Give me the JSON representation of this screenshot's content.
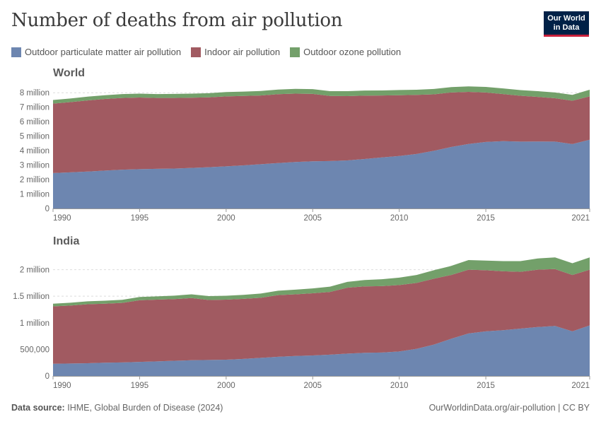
{
  "title": "Number of deaths from air pollution",
  "logo": {
    "line1": "Our World",
    "line2": "in Data"
  },
  "colors": {
    "outdoor_pm": "#6d86b0",
    "indoor": "#a15a61",
    "ozone": "#73a06a"
  },
  "legend": [
    {
      "label": "Outdoor particulate matter air pollution",
      "color": "#6d86b0"
    },
    {
      "label": "Indoor air pollution",
      "color": "#a15a61"
    },
    {
      "label": "Outdoor ozone pollution",
      "color": "#73a06a"
    }
  ],
  "footer": {
    "source_label": "Data source:",
    "source_text": "IHME, Global Burden of Disease (2024)",
    "credit": "OurWorldinData.org/air-pollution | CC BY"
  },
  "chart_data": [
    {
      "type": "area",
      "stacked": true,
      "title": "World",
      "x": [
        1990,
        1991,
        1992,
        1993,
        1994,
        1995,
        1996,
        1997,
        1998,
        1999,
        2000,
        2001,
        2002,
        2003,
        2004,
        2005,
        2006,
        2007,
        2008,
        2009,
        2010,
        2011,
        2012,
        2013,
        2014,
        2015,
        2016,
        2017,
        2018,
        2019,
        2020,
        2021
      ],
      "ylim": [
        0,
        8500000
      ],
      "yticks": [
        0,
        1000000,
        2000000,
        3000000,
        4000000,
        5000000,
        6000000,
        7000000,
        8000000
      ],
      "ytick_labels": [
        "0",
        "1 million",
        "2 million",
        "3 million",
        "4 million",
        "5 million",
        "6 million",
        "7 million",
        "8 million"
      ],
      "xticks": [
        1990,
        1995,
        2000,
        2005,
        2010,
        2015,
        2021
      ],
      "series": [
        {
          "name": "Outdoor particulate matter air pollution",
          "values": [
            2450000,
            2500000,
            2550000,
            2620000,
            2680000,
            2720000,
            2740000,
            2760000,
            2800000,
            2850000,
            2910000,
            2980000,
            3060000,
            3140000,
            3210000,
            3260000,
            3280000,
            3320000,
            3420000,
            3530000,
            3630000,
            3770000,
            3990000,
            4250000,
            4460000,
            4600000,
            4650000,
            4620000,
            4630000,
            4620000,
            4450000,
            4750000
          ]
        },
        {
          "name": "Indoor air pollution",
          "values": [
            4800000,
            4850000,
            4920000,
            4950000,
            4960000,
            4950000,
            4900000,
            4880000,
            4860000,
            4830000,
            4840000,
            4800000,
            4750000,
            4760000,
            4730000,
            4660000,
            4500000,
            4450000,
            4380000,
            4280000,
            4200000,
            4080000,
            3900000,
            3770000,
            3600000,
            3420000,
            3260000,
            3170000,
            3080000,
            3000000,
            3000000,
            3000000
          ]
        },
        {
          "name": "Outdoor ozone pollution",
          "values": [
            250000,
            250000,
            260000,
            260000,
            270000,
            270000,
            270000,
            280000,
            280000,
            290000,
            300000,
            300000,
            310000,
            320000,
            330000,
            330000,
            330000,
            340000,
            350000,
            350000,
            360000,
            360000,
            370000,
            370000,
            380000,
            380000,
            390000,
            390000,
            400000,
            400000,
            400000,
            460000
          ]
        }
      ]
    },
    {
      "type": "area",
      "stacked": true,
      "title": "India",
      "x": [
        1990,
        1991,
        1992,
        1993,
        1994,
        1995,
        1996,
        1997,
        1998,
        1999,
        2000,
        2001,
        2002,
        2003,
        2004,
        2005,
        2006,
        2007,
        2008,
        2009,
        2010,
        2011,
        2012,
        2013,
        2014,
        2015,
        2016,
        2017,
        2018,
        2019,
        2020,
        2021
      ],
      "ylim": [
        0,
        2300000
      ],
      "yticks": [
        0,
        500000,
        1000000,
        1500000,
        2000000
      ],
      "ytick_labels": [
        "0",
        "500,000",
        "1 million",
        "1.5 million",
        "2 million"
      ],
      "xticks": [
        1990,
        1995,
        2000,
        2005,
        2010,
        2015,
        2021
      ],
      "series": [
        {
          "name": "Outdoor particulate matter air pollution",
          "values": [
            230000,
            235000,
            240000,
            250000,
            255000,
            265000,
            275000,
            285000,
            295000,
            300000,
            305000,
            320000,
            340000,
            360000,
            375000,
            385000,
            400000,
            420000,
            435000,
            440000,
            460000,
            510000,
            590000,
            700000,
            800000,
            840000,
            860000,
            890000,
            920000,
            940000,
            840000,
            950000
          ]
        },
        {
          "name": "Indoor air pollution",
          "values": [
            1080000,
            1090000,
            1110000,
            1110000,
            1120000,
            1160000,
            1160000,
            1160000,
            1170000,
            1130000,
            1130000,
            1130000,
            1130000,
            1160000,
            1160000,
            1170000,
            1180000,
            1240000,
            1250000,
            1250000,
            1250000,
            1240000,
            1240000,
            1200000,
            1200000,
            1150000,
            1110000,
            1070000,
            1080000,
            1070000,
            1060000,
            1050000
          ]
        },
        {
          "name": "Outdoor ozone pollution",
          "values": [
            50000,
            52000,
            54000,
            56000,
            58000,
            60000,
            62000,
            66000,
            70000,
            72000,
            74000,
            76000,
            80000,
            84000,
            88000,
            92000,
            100000,
            110000,
            120000,
            130000,
            140000,
            150000,
            160000,
            170000,
            180000,
            180000,
            190000,
            200000,
            210000,
            220000,
            220000,
            230000
          ]
        }
      ]
    }
  ]
}
